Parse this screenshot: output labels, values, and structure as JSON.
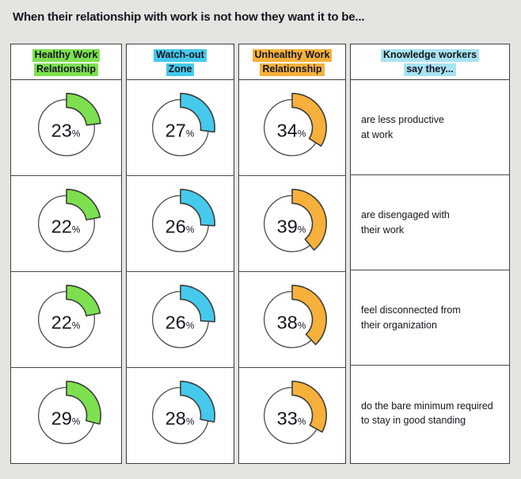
{
  "title": "When their relationship with work is not how they want it to be...",
  "unit_label": "%",
  "colors": {
    "background": "#E5E4E1",
    "border": "#3E3E3E",
    "healthy_green": "#7DE14F",
    "watch_out_cyan": "#45CAEC",
    "unhealthy_orange": "#F5B13B",
    "statements_highlight_blue": "#A7E3F3",
    "circle_stroke": "#4A4A4A",
    "arc_stroke": "#3A3A3A",
    "text": "#15151E"
  },
  "columns": [
    {
      "key": "healthy",
      "type": "donut",
      "color": "#7DE14F",
      "header_lines": [
        "Healthy Work",
        "Relationship"
      ],
      "values": [
        23,
        22,
        22,
        29
      ]
    },
    {
      "key": "watch-out",
      "type": "donut",
      "color": "#45CAEC",
      "header_lines": [
        "Watch-out",
        "Zone"
      ],
      "values": [
        27,
        26,
        26,
        28
      ]
    },
    {
      "key": "unhealthy",
      "type": "donut",
      "color": "#F5B13B",
      "header_lines": [
        "Unhealthy Work",
        "Relationship"
      ],
      "values": [
        34,
        39,
        38,
        33
      ]
    },
    {
      "key": "statements",
      "type": "text",
      "color": "#A7E3F3",
      "header_lines": [
        "Knowledge workers",
        "say they..."
      ],
      "statements": [
        [
          "are less productive",
          "at work"
        ],
        [
          "are disengaged with",
          "their work"
        ],
        [
          "feel disconnected from",
          "their organization"
        ],
        [
          "do the bare minimum required",
          "to stay in good standing"
        ]
      ]
    }
  ],
  "chart_data": {
    "type": "pie",
    "subtype": "donut-gauge-grid",
    "title": "When their relationship with work is not how they want it to be...",
    "unit": "%",
    "categories": [
      "are less productive at work",
      "are disengaged with their work",
      "feel disconnected from their organization",
      "do the bare minimum required to stay in good standing"
    ],
    "series": [
      {
        "name": "Healthy Work Relationship",
        "color": "#7DE14F",
        "values": [
          23,
          22,
          22,
          29
        ]
      },
      {
        "name": "Watch-out Zone",
        "color": "#45CAEC",
        "values": [
          27,
          26,
          26,
          28
        ]
      },
      {
        "name": "Unhealthy Work Relationship",
        "color": "#F5B13B",
        "values": [
          34,
          39,
          38,
          33
        ]
      }
    ],
    "legend_position": "column headers (highlighted labels)",
    "layout": "table: rows are worker statements, columns are work-relationship zones; each cell is a donut gauge whose arc starts at 12 o'clock and sweeps clockwise by the percentage"
  }
}
